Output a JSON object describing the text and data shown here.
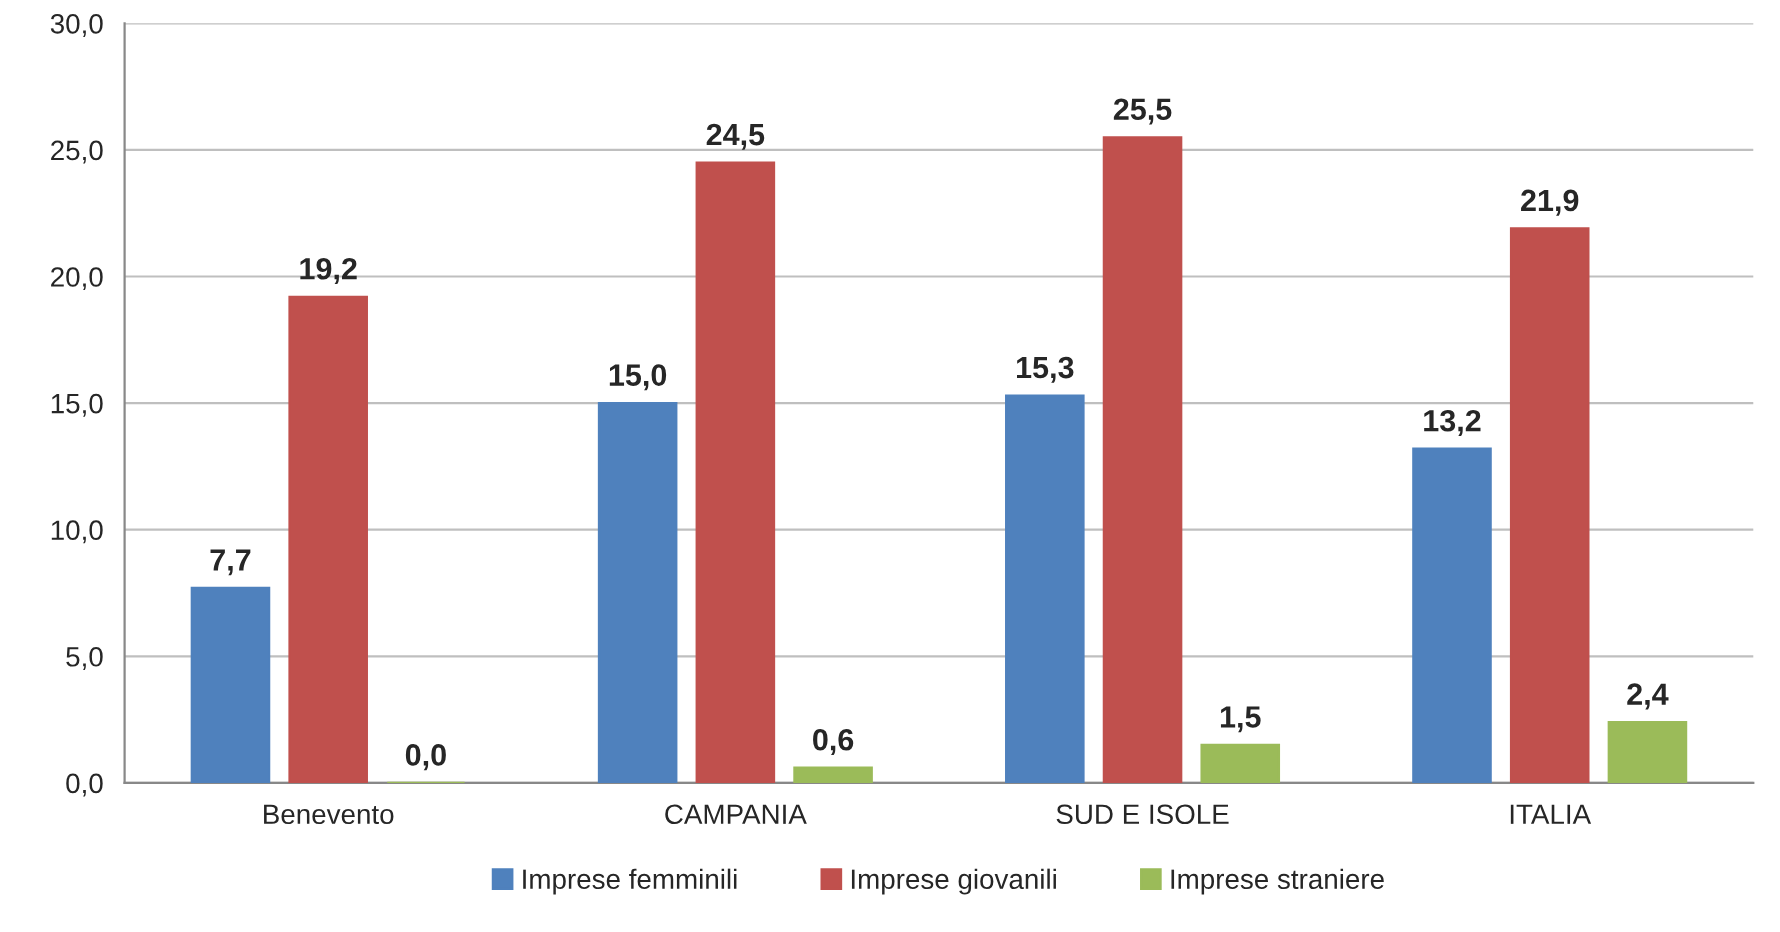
{
  "chart_data": {
    "type": "bar",
    "categories": [
      "Benevento",
      "CAMPANIA",
      "SUD E ISOLE",
      "ITALIA"
    ],
    "series": [
      {
        "name": "Imprese femminili",
        "color": "#4f81bd",
        "values": [
          7.7,
          15.0,
          15.3,
          13.2
        ],
        "value_labels": [
          "7,7",
          "15,0",
          "15,3",
          "13,2"
        ]
      },
      {
        "name": "Imprese giovanili",
        "color": "#c0504d",
        "values": [
          19.2,
          24.5,
          25.5,
          21.9
        ],
        "value_labels": [
          "19,2",
          "24,5",
          "25,5",
          "21,9"
        ]
      },
      {
        "name": "Imprese straniere",
        "color": "#9bbb59",
        "values": [
          0.0,
          0.6,
          1.5,
          2.4
        ],
        "value_labels": [
          "0,0",
          "0,6",
          "1,5",
          "2,4"
        ]
      }
    ],
    "ylim": [
      0,
      30
    ],
    "yticks": [
      {
        "value": 0,
        "label": "0,0"
      },
      {
        "value": 5,
        "label": "5,0"
      },
      {
        "value": 10,
        "label": "10,0"
      },
      {
        "value": 15,
        "label": "15,0"
      },
      {
        "value": 20,
        "label": "20,0"
      },
      {
        "value": 25,
        "label": "25,0"
      },
      {
        "value": 30,
        "label": "30,0"
      }
    ],
    "grid": "y",
    "legend": "bottom"
  }
}
